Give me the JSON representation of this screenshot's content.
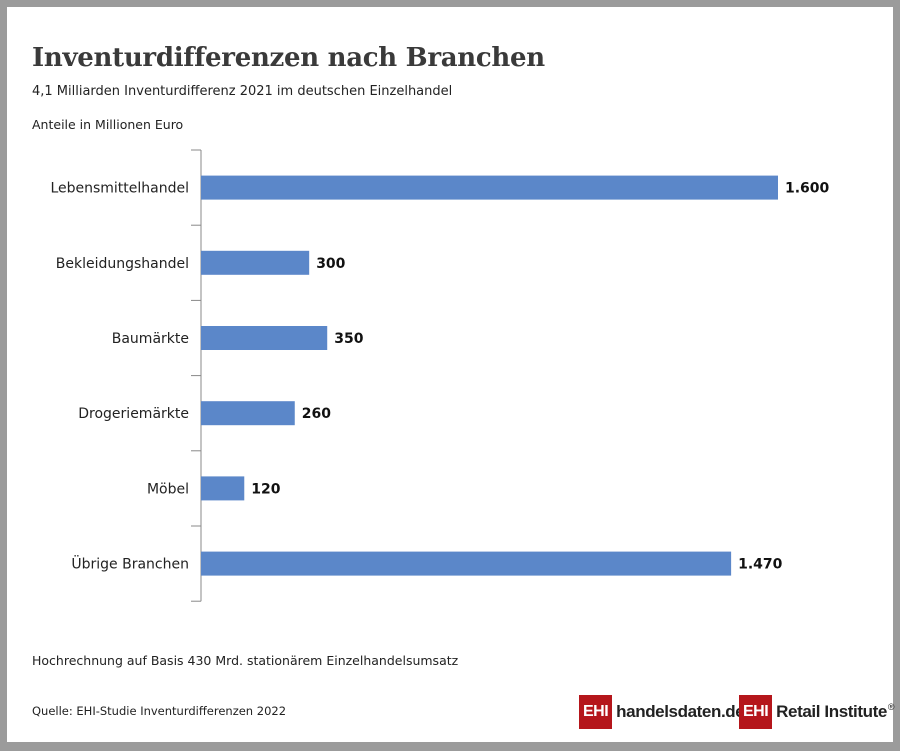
{
  "title": "Inventurdifferenzen nach Branchen",
  "subtitle": "4,1 Milliarden Inventurdifferenz 2021 im deutschen Einzelhandel",
  "unit_label": "Anteile in Millionen Euro",
  "footnote": "Hochrechnung auf Basis 430 Mrd. stationärem Einzelhandelsumsatz",
  "source": "Quelle: EHI-Studie Inventurdifferenzen 2022",
  "logos": {
    "handelsdaten": {
      "badge": "EHI",
      "text": "handelsdaten.de"
    },
    "retail": {
      "badge": "EHI",
      "text": "Retail Institute",
      "reg": "®"
    }
  },
  "colors": {
    "bar": "#5b87c9",
    "axis": "#888888",
    "logo_red": "#b5161b"
  },
  "chart_data": {
    "type": "bar",
    "orientation": "horizontal",
    "title": "Inventurdifferenzen nach Branchen",
    "subtitle": "4,1 Milliarden Inventurdifferenz 2021 im deutschen Einzelhandel",
    "xlabel": "",
    "ylabel": "Anteile in Millionen Euro",
    "categories": [
      "Lebensmittelhandel",
      "Bekleidungshandel",
      "Baumärkte",
      "Drogeriemärkte",
      "Möbel",
      "Übrige Branchen"
    ],
    "values": [
      1600,
      300,
      350,
      260,
      120,
      1470
    ],
    "value_labels": [
      "1.600",
      "300",
      "350",
      "260",
      "120",
      "1.470"
    ],
    "xlim": [
      0,
      1600
    ],
    "grid": false,
    "legend": "none"
  }
}
